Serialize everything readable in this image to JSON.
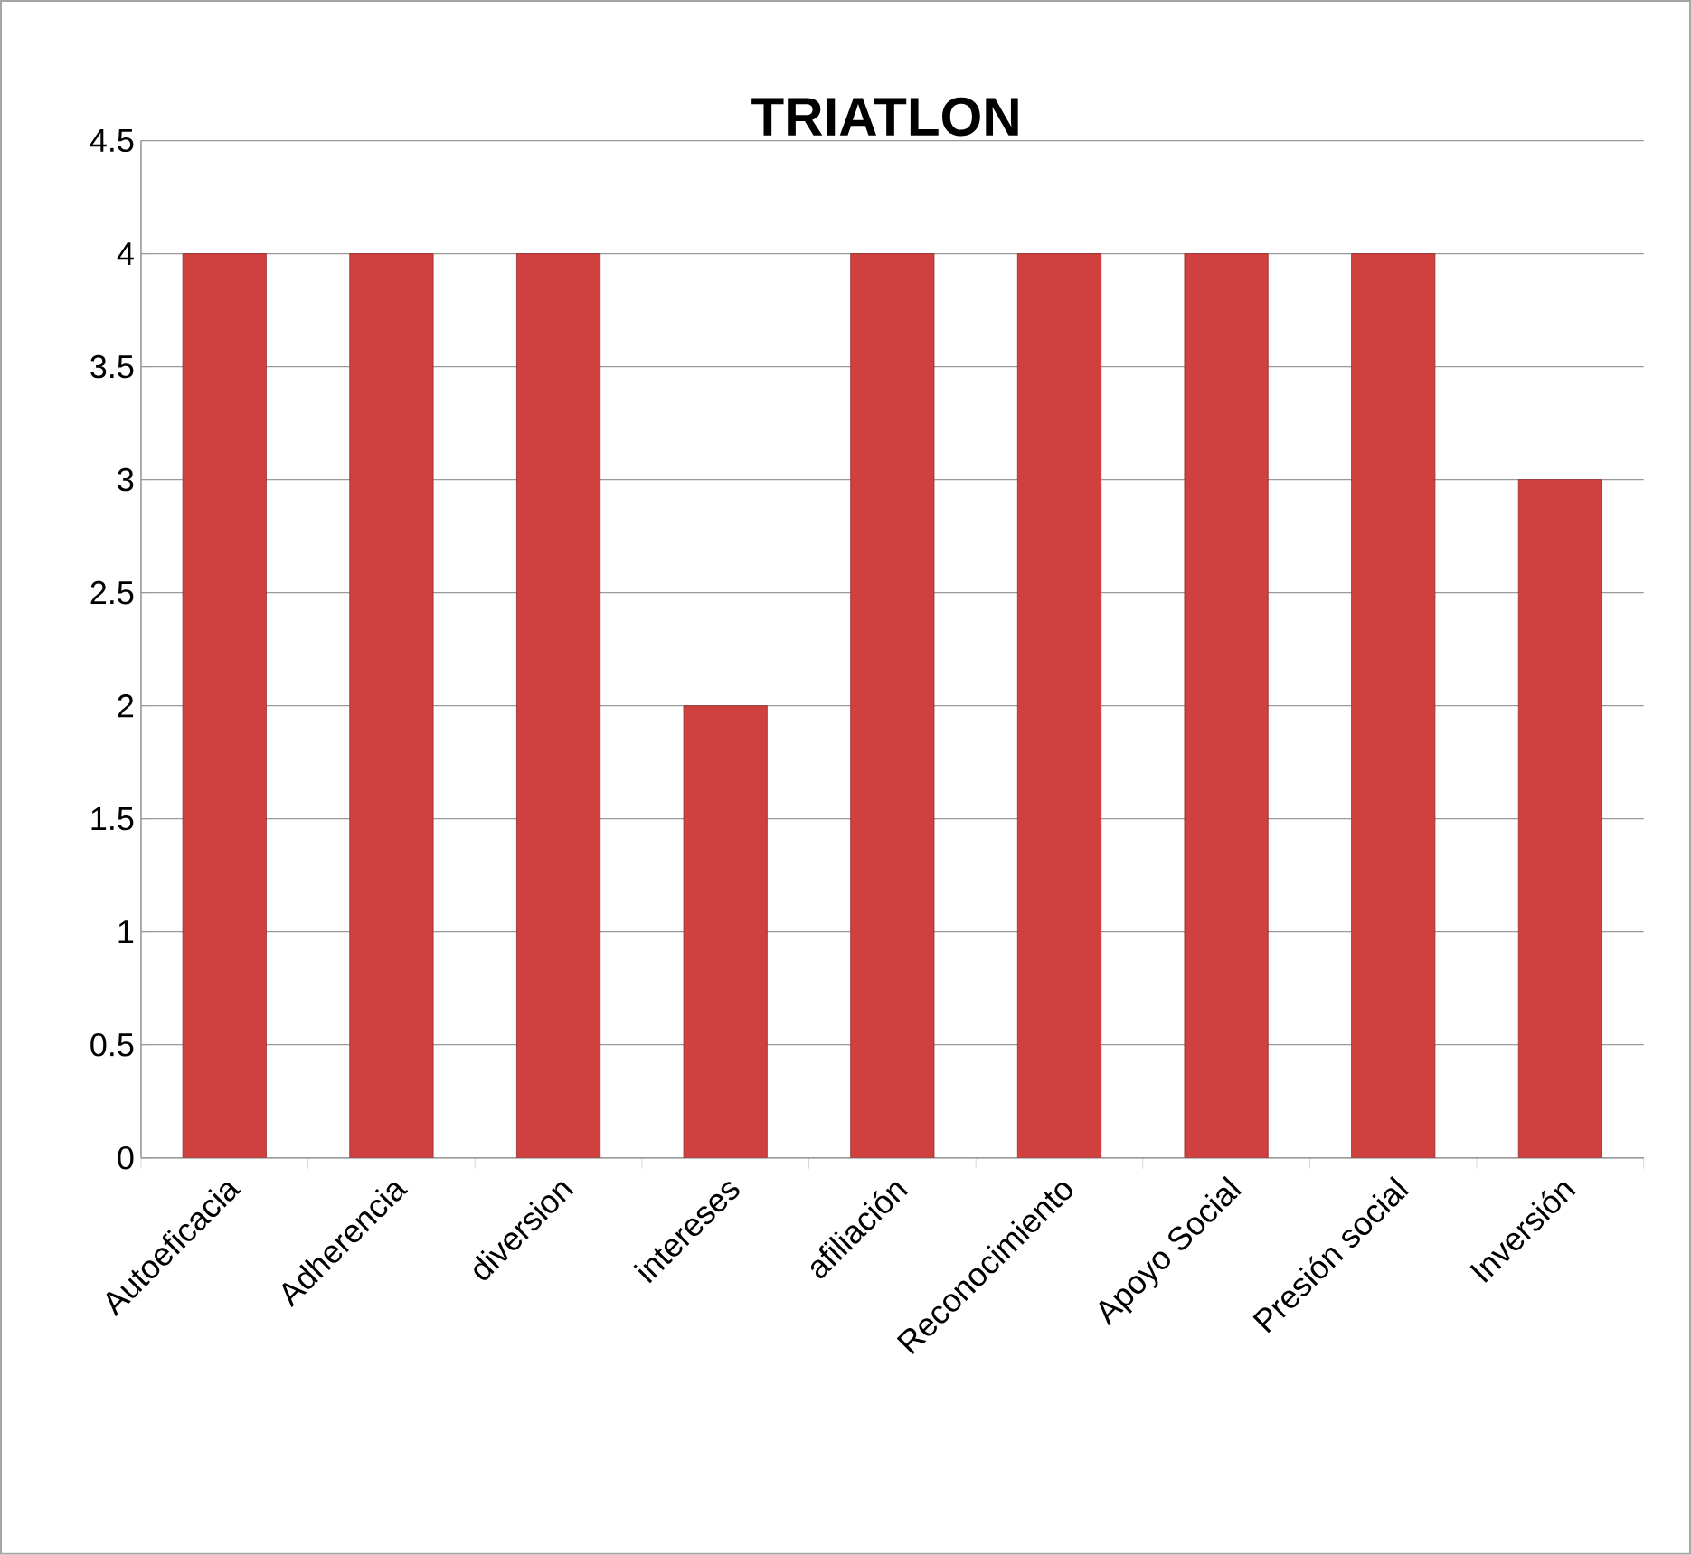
{
  "chart_data": {
    "type": "bar",
    "title": "TRIATLON",
    "categories": [
      "Autoeficacia",
      "Adherencia",
      "diversion",
      "intereses",
      "afiliación",
      "Reconocimiento",
      "Apoyo Social",
      "Presión social",
      "Inversión"
    ],
    "values": [
      4,
      4,
      4,
      2,
      4,
      4,
      4,
      4,
      3
    ],
    "color": "#d0403f",
    "ylim": [
      0,
      4.5
    ],
    "yticks": [
      0,
      0.5,
      1,
      1.5,
      2,
      2.5,
      3,
      3.5,
      4,
      4.5
    ],
    "grid": "y"
  }
}
